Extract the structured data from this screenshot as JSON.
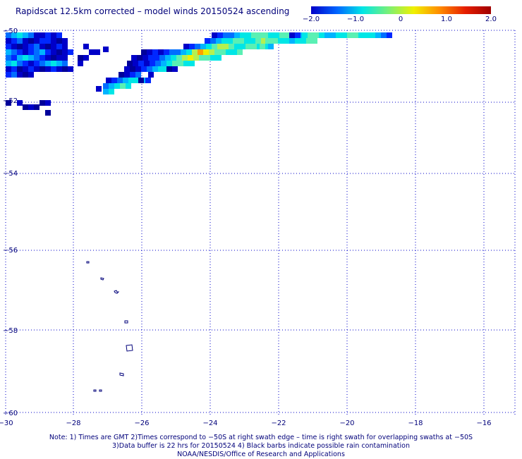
{
  "title": "Rapidscat 12.5km corrected – model winds 20150524 ascending",
  "colorbar": {
    "labels": [
      "−2.0",
      "−1.0",
      "0",
      "1.0",
      "2.0"
    ],
    "stops": [
      "#0000c8",
      "#0064ff",
      "#00e6e6",
      "#78f078",
      "#f0f000",
      "#ff8c00",
      "#e61e00",
      "#a00000"
    ]
  },
  "axes": {
    "x_ticks": [
      "−30",
      "−28",
      "−26",
      "−24",
      "−22",
      "−20",
      "−18",
      "−16"
    ],
    "y_ticks": [
      "−50",
      "−52",
      "−54",
      "−56",
      "−58",
      "−60"
    ],
    "lon_range": [
      -30,
      -15
    ],
    "lat_range": [
      -50,
      -60
    ],
    "grid": "dotted"
  },
  "colors": {
    "grid": "#0000c8",
    "text": "#00007a",
    "coast": "#00007a"
  },
  "notes": [
    "Note: 1) Times are GMT 2)Times correspond to −50S at right swath edge – time is right swath for overlapping swaths at −50S",
    "3)Data buffer is 22 hrs for 20150524 4) Black barbs indicate possible rain contamination",
    "NOAA/NESDIS/Office of Research and Applications"
  ]
}
